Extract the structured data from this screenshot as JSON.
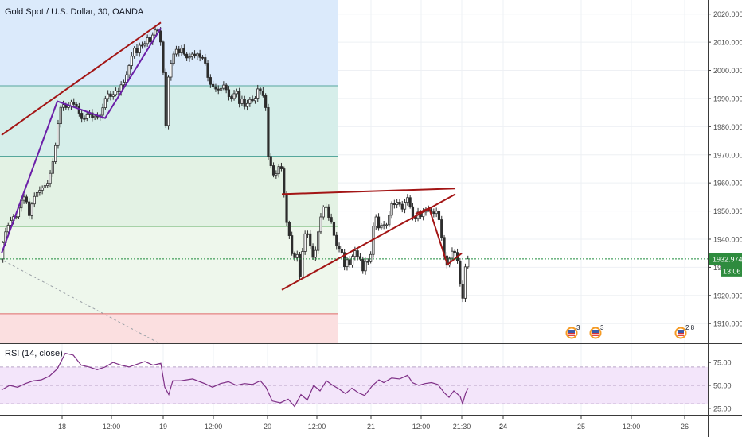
{
  "chart_data": [
    {
      "type": "candlestick",
      "title": "Gold Spot / U.S. Dollar, 30, OANDA",
      "ylim": [
        1903,
        2025
      ],
      "y_ticks": [
        {
          "value": 2020,
          "label": "2020.000"
        },
        {
          "value": 2010,
          "label": "2010.000"
        },
        {
          "value": 2000,
          "label": "2000.000"
        },
        {
          "value": 1990,
          "label": "1990.000"
        },
        {
          "value": 1980,
          "label": "1980.000"
        },
        {
          "value": 1970,
          "label": "1970.000"
        },
        {
          "value": 1960,
          "label": "1960.000"
        },
        {
          "value": 1950,
          "label": "1950.000"
        },
        {
          "value": 1940,
          "label": "1940.000"
        },
        {
          "value": 1930,
          "label": "1930.000"
        },
        {
          "value": 1920,
          "label": "1920.000"
        },
        {
          "value": 1910,
          "label": "1910.000"
        }
      ],
      "x_ticks": [
        {
          "label": "18",
          "bold": false
        },
        {
          "label": "12:00",
          "bold": false
        },
        {
          "label": "19",
          "bold": false
        },
        {
          "label": "12:00",
          "bold": false
        },
        {
          "label": "20",
          "bold": false
        },
        {
          "label": "12:00",
          "bold": false
        },
        {
          "label": "21",
          "bold": false
        },
        {
          "label": "12:00",
          "bold": false
        },
        {
          "label": "21:30",
          "bold": false
        },
        {
          "label": "24",
          "bold": true
        },
        {
          "label": "25",
          "bold": false
        },
        {
          "label": "12:00",
          "bold": false
        },
        {
          "label": "26",
          "bold": false
        }
      ],
      "current_price": {
        "label": "1932.974",
        "value": 1932.974,
        "countdown": "13:06"
      },
      "price_path": [
        [
          0,
          1933
        ],
        [
          4,
          1940
        ],
        [
          8,
          1944
        ],
        [
          12,
          1946
        ],
        [
          16,
          1948
        ],
        [
          20,
          1948
        ],
        [
          24,
          1952
        ],
        [
          28,
          1955
        ],
        [
          32,
          1955
        ],
        [
          36,
          1948
        ],
        [
          40,
          1953
        ],
        [
          44,
          1956
        ],
        [
          48,
          1957
        ],
        [
          52,
          1958
        ],
        [
          56,
          1959
        ],
        [
          60,
          1960
        ],
        [
          64,
          1965
        ],
        [
          68,
          1970
        ],
        [
          72,
          1980
        ],
        [
          76,
          1987
        ],
        [
          80,
          1988
        ],
        [
          84,
          1986
        ],
        [
          88,
          1989
        ],
        [
          92,
          1988
        ],
        [
          96,
          1987
        ],
        [
          100,
          1984
        ],
        [
          104,
          1982
        ],
        [
          108,
          1984
        ],
        [
          112,
          1985
        ],
        [
          116,
          1983
        ],
        [
          120,
          1984
        ],
        [
          124,
          1983
        ],
        [
          128,
          1986
        ],
        [
          132,
          1990
        ],
        [
          136,
          1992
        ],
        [
          140,
          1990
        ],
        [
          144,
          1993
        ],
        [
          148,
          1992
        ],
        [
          152,
          1995
        ],
        [
          156,
          1996
        ],
        [
          160,
          2000
        ],
        [
          164,
          2004
        ],
        [
          168,
          2008
        ],
        [
          172,
          2006
        ],
        [
          176,
          2010
        ],
        [
          180,
          2008
        ],
        [
          184,
          2012
        ],
        [
          188,
          2010
        ],
        [
          192,
          2013
        ],
        [
          196,
          2015
        ],
        [
          200,
          2013
        ],
        [
          204,
          2004
        ],
        [
          206,
          1988
        ],
        [
          208,
          1980
        ],
        [
          210,
          1994
        ],
        [
          212,
          2000
        ],
        [
          216,
          2004
        ],
        [
          220,
          2008
        ],
        [
          224,
          2006
        ],
        [
          228,
          2008
        ],
        [
          232,
          2005
        ],
        [
          236,
          2004
        ],
        [
          240,
          2006
        ],
        [
          244,
          2005
        ],
        [
          248,
          2006
        ],
        [
          252,
          2004
        ],
        [
          256,
          2005
        ],
        [
          260,
          1998
        ],
        [
          264,
          1995
        ],
        [
          268,
          1994
        ],
        [
          272,
          1993
        ],
        [
          276,
          1993
        ],
        [
          280,
          1995
        ],
        [
          284,
          1993
        ],
        [
          288,
          1990
        ],
        [
          292,
          1990
        ],
        [
          296,
          1994
        ],
        [
          300,
          1988
        ],
        [
          304,
          1990
        ],
        [
          308,
          1986
        ],
        [
          312,
          1990
        ],
        [
          316,
          1989
        ],
        [
          320,
          1990
        ],
        [
          324,
          1994
        ],
        [
          328,
          1992
        ],
        [
          332,
          1990
        ],
        [
          334,
          1985
        ],
        [
          336,
          1970
        ],
        [
          340,
          1966
        ],
        [
          344,
          1962
        ],
        [
          348,
          1964
        ],
        [
          352,
          1968
        ],
        [
          356,
          1957
        ],
        [
          360,
          1945
        ],
        [
          364,
          1940
        ],
        [
          368,
          1931
        ],
        [
          372,
          1937
        ],
        [
          376,
          1926
        ],
        [
          380,
          1937
        ],
        [
          384,
          1944
        ],
        [
          388,
          1940
        ],
        [
          392,
          1933
        ],
        [
          396,
          1936
        ],
        [
          400,
          1944
        ],
        [
          404,
          1950
        ],
        [
          408,
          1953
        ],
        [
          412,
          1948
        ],
        [
          416,
          1946
        ],
        [
          420,
          1940
        ],
        [
          424,
          1936
        ],
        [
          428,
          1937
        ],
        [
          432,
          1930
        ],
        [
          436,
          1933
        ],
        [
          440,
          1930
        ],
        [
          444,
          1937
        ],
        [
          448,
          1934
        ],
        [
          452,
          1933
        ],
        [
          456,
          1928
        ],
        [
          460,
          1934
        ],
        [
          464,
          1930
        ],
        [
          468,
          1944
        ],
        [
          472,
          1948
        ],
        [
          476,
          1943
        ],
        [
          480,
          1946
        ],
        [
          484,
          1944
        ],
        [
          488,
          1948
        ],
        [
          492,
          1953
        ],
        [
          496,
          1952
        ],
        [
          500,
          1954
        ],
        [
          504,
          1950
        ],
        [
          508,
          1953
        ],
        [
          512,
          1955
        ],
        [
          516,
          1950
        ],
        [
          520,
          1946
        ],
        [
          524,
          1950
        ],
        [
          528,
          1948
        ],
        [
          532,
          1950
        ],
        [
          536,
          1951
        ],
        [
          540,
          1950
        ],
        [
          544,
          1949
        ],
        [
          548,
          1950
        ],
        [
          552,
          1946
        ],
        [
          556,
          1937
        ],
        [
          560,
          1930
        ],
        [
          564,
          1933
        ],
        [
          568,
          1936
        ],
        [
          572,
          1935
        ],
        [
          576,
          1930
        ],
        [
          578,
          1922
        ],
        [
          580,
          1915
        ],
        [
          582,
          1925
        ],
        [
          584,
          1930
        ],
        [
          586,
          1933
        ]
      ],
      "fib_levels": [
        1994.5,
        1969.5,
        1944.5,
        1913.5
      ],
      "trend_lines": [
        {
          "color": "#a31515",
          "points": [
            [
              0,
              1977
            ],
            [
              200,
              2017
            ]
          ]
        },
        {
          "color": "#6b1fa8",
          "points": [
            [
              0,
              1935
            ],
            [
              70,
              1989
            ],
            [
              130,
              1983
            ],
            [
              200,
              2015
            ]
          ]
        },
        {
          "color": "#a31515",
          "points": [
            [
              352,
              1956
            ],
            [
              570,
              1958
            ]
          ]
        },
        {
          "color": "#a31515",
          "points": [
            [
              352,
              1922
            ],
            [
              570,
              1956
            ]
          ]
        },
        {
          "color": "#a31515",
          "points": [
            [
              520,
              1949
            ],
            [
              537,
              1951
            ],
            [
              560,
              1931
            ],
            [
              578,
              1935
            ]
          ]
        }
      ],
      "event_markers": [
        {
          "icon": "us-flag-icon",
          "count": "3"
        },
        {
          "icon": "us-flag-icon",
          "count": "3"
        },
        {
          "icon": "us-flag-icon",
          "count": "2 8"
        }
      ]
    },
    {
      "type": "line",
      "title": "RSI (14, close)",
      "ylim": [
        18,
        95
      ],
      "y_ticks": [
        {
          "value": 75,
          "label": "75.00"
        },
        {
          "value": 50,
          "label": "50.00"
        },
        {
          "value": 25,
          "label": "25.00"
        }
      ],
      "band": [
        30,
        70
      ],
      "series": [
        {
          "points": [
            [
              0,
              45
            ],
            [
              10,
              50
            ],
            [
              20,
              48
            ],
            [
              30,
              52
            ],
            [
              40,
              55
            ],
            [
              50,
              56
            ],
            [
              60,
              60
            ],
            [
              70,
              68
            ],
            [
              80,
              85
            ],
            [
              90,
              83
            ],
            [
              100,
              72
            ],
            [
              110,
              70
            ],
            [
              120,
              67
            ],
            [
              130,
              70
            ],
            [
              140,
              75
            ],
            [
              150,
              72
            ],
            [
              160,
              70
            ],
            [
              170,
              73
            ],
            [
              180,
              76
            ],
            [
              190,
              72
            ],
            [
              200,
              74
            ],
            [
              205,
              48
            ],
            [
              210,
              40
            ],
            [
              215,
              55
            ],
            [
              225,
              55
            ],
            [
              240,
              57
            ],
            [
              255,
              52
            ],
            [
              265,
              48
            ],
            [
              275,
              52
            ],
            [
              285,
              54
            ],
            [
              295,
              50
            ],
            [
              305,
              52
            ],
            [
              315,
              51
            ],
            [
              325,
              55
            ],
            [
              332,
              48
            ],
            [
              340,
              33
            ],
            [
              350,
              31
            ],
            [
              360,
              35
            ],
            [
              368,
              27
            ],
            [
              376,
              40
            ],
            [
              384,
              34
            ],
            [
              392,
              50
            ],
            [
              400,
              44
            ],
            [
              408,
              55
            ],
            [
              416,
              50
            ],
            [
              424,
              46
            ],
            [
              432,
              41
            ],
            [
              440,
              47
            ],
            [
              448,
              42
            ],
            [
              456,
              39
            ],
            [
              466,
              50
            ],
            [
              474,
              56
            ],
            [
              480,
              53
            ],
            [
              490,
              58
            ],
            [
              500,
              57
            ],
            [
              510,
              61
            ],
            [
              516,
              53
            ],
            [
              524,
              50
            ],
            [
              532,
              52
            ],
            [
              540,
              53
            ],
            [
              548,
              51
            ],
            [
              556,
              42
            ],
            [
              562,
              37
            ],
            [
              568,
              44
            ],
            [
              576,
              38
            ],
            [
              579,
              30
            ],
            [
              583,
              42
            ],
            [
              586,
              47
            ]
          ]
        }
      ]
    }
  ]
}
